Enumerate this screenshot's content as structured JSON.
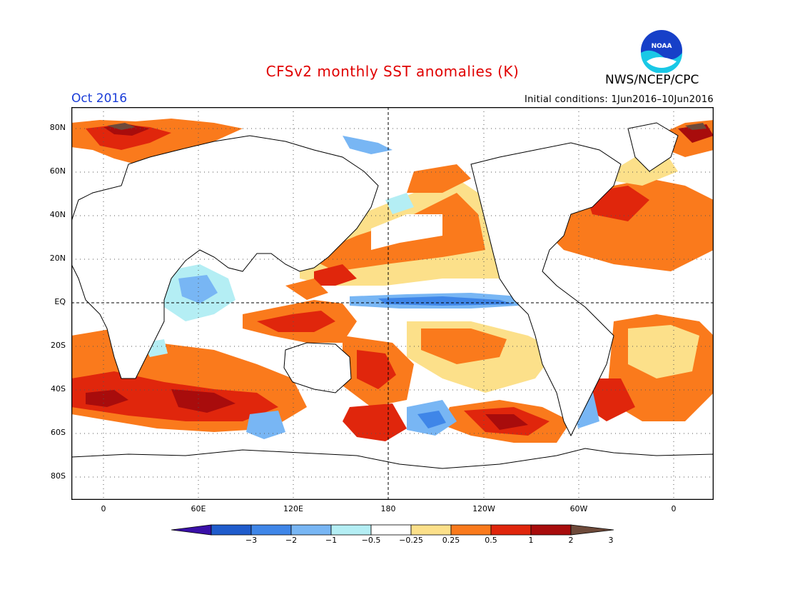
{
  "header": {
    "title": "CFSv2 monthly SST anomalies (K)",
    "month": "Oct 2016",
    "initial_conditions": "Initial conditions: 1Jun2016–10Jun2016",
    "agency": "NWS/NCEP/CPC",
    "logo_text": "NOAA"
  },
  "axes": {
    "lat_labels": [
      "80N",
      "60N",
      "40N",
      "20N",
      "EQ",
      "20S",
      "40S",
      "60S",
      "80S"
    ],
    "lon_labels": [
      "0",
      "60E",
      "120E",
      "180",
      "120W",
      "60W",
      "0"
    ]
  },
  "colorbar": {
    "labels": [
      "−3",
      "−2",
      "−1",
      "−0.5",
      "−0.25",
      "0.25",
      "0.5",
      "1",
      "2",
      "3"
    ],
    "colors": [
      "#3a10a8",
      "#1f5ccc",
      "#3f86e8",
      "#78b6f4",
      "#b4eef4",
      "#ffffff",
      "#fce08a",
      "#fa7a1c",
      "#e0260c",
      "#a80c0c",
      "#6e4a3a"
    ]
  },
  "colors": {
    "title": "#e00000",
    "month": "#1a3cd8",
    "ocean_neutral": "#ffffff",
    "warm_weak": "#fce08a",
    "warm": "#fa7a1c",
    "warm_strong": "#e0260c",
    "warm_extreme": "#a80c0c",
    "cool_weak": "#b4eef4",
    "cool": "#78b6f4",
    "cool_strong": "#3f86e8"
  }
}
